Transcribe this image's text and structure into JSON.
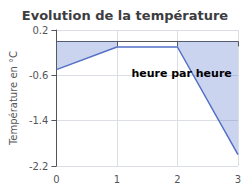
{
  "chart_data": {
    "type": "line",
    "title": "Evolution de la température",
    "xlabel": "heure par heure",
    "ylabel": "Température en °C",
    "x": [
      0,
      1,
      2,
      3
    ],
    "values": [
      -0.5,
      -0.1,
      -0.1,
      -2.0
    ],
    "fill_segments": [
      {
        "x": [
          0,
          1
        ],
        "values": [
          -0.5,
          -0.1
        ]
      },
      {
        "x": [
          2,
          3
        ],
        "values": [
          -0.1,
          -2.0
        ]
      }
    ],
    "fill_baseline": 0.0,
    "xlim": [
      0,
      3
    ],
    "ylim": [
      -2.2,
      0.2
    ],
    "xticks": [
      0,
      1,
      2,
      3
    ],
    "yticks": [
      0.2,
      -0.6,
      -1.4,
      -2.2
    ],
    "grid": true
  }
}
